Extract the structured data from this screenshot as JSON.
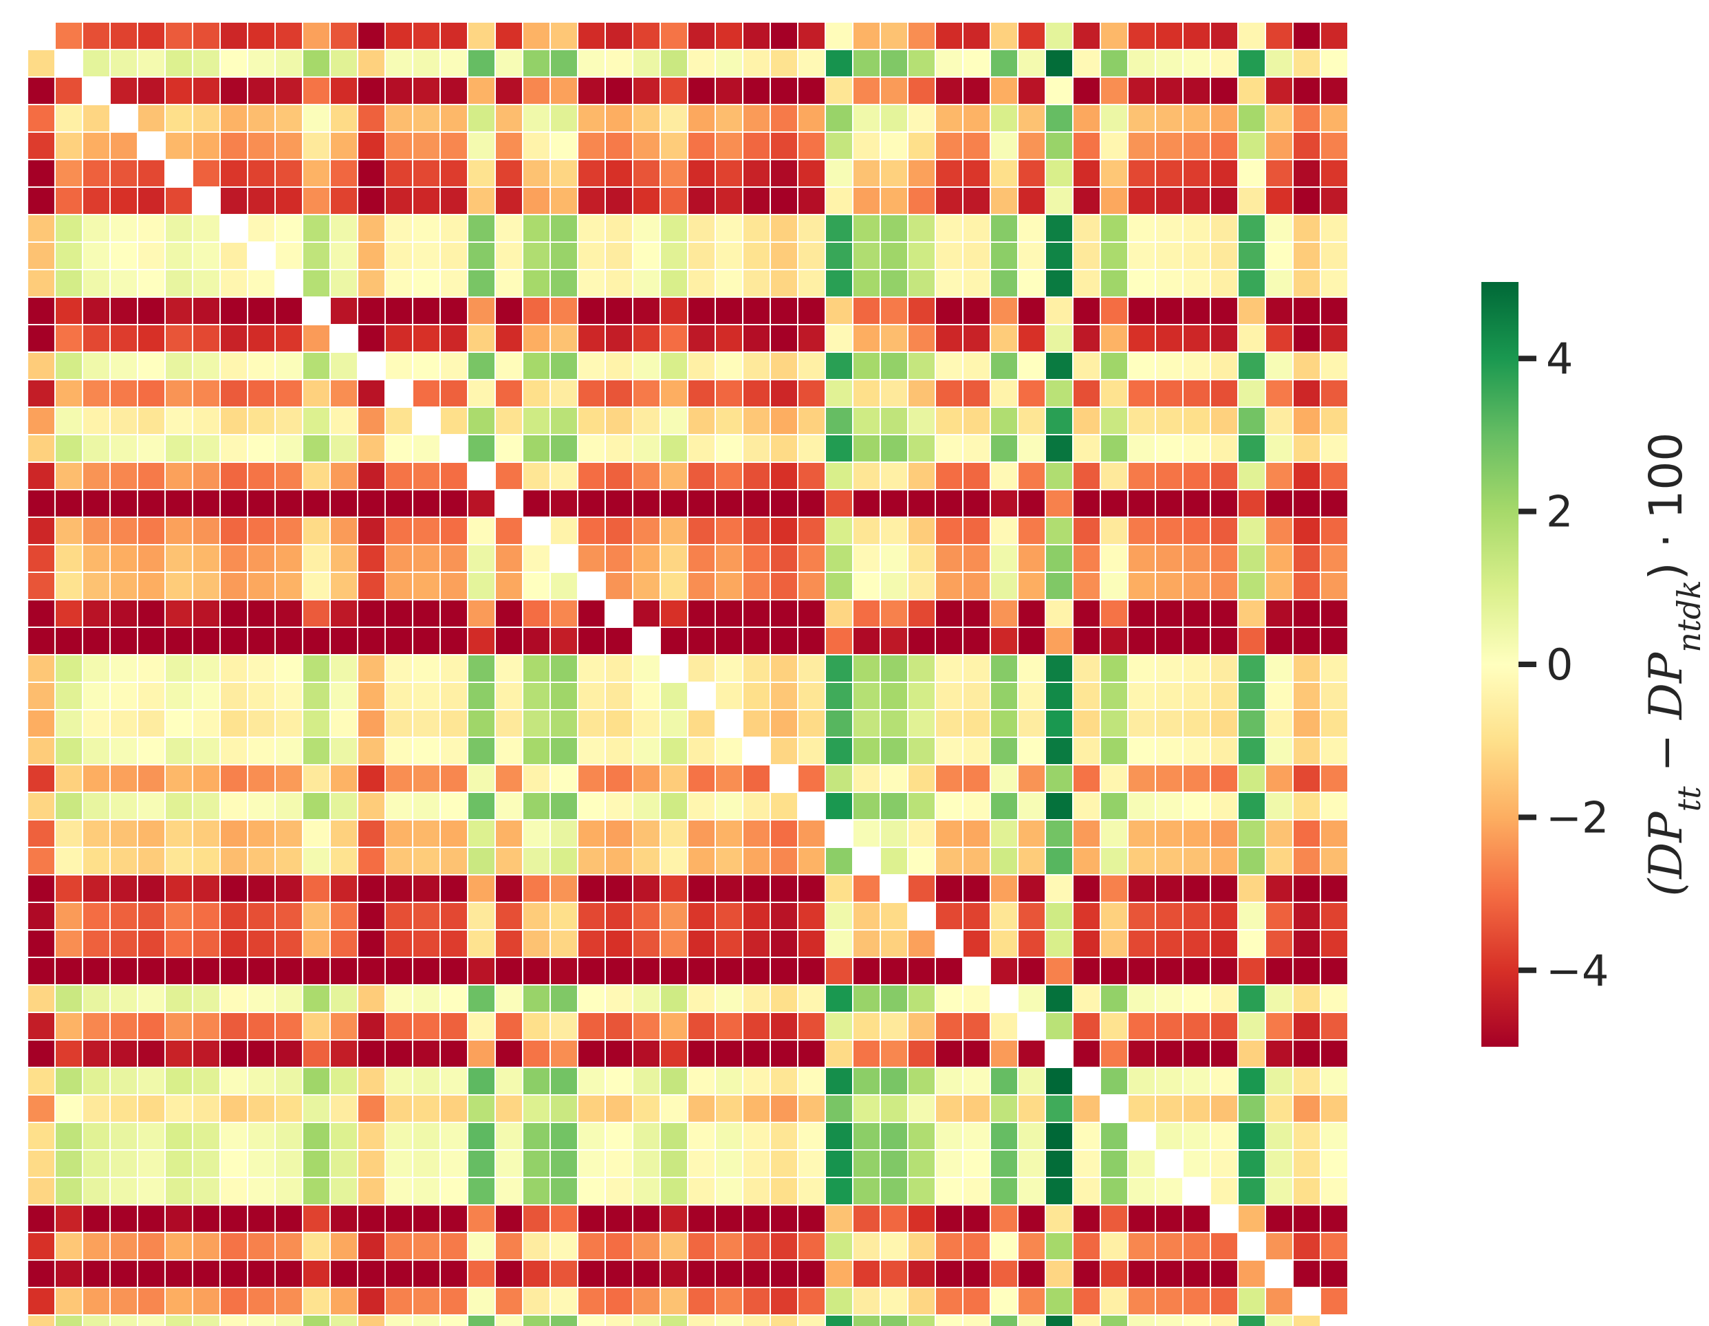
{
  "chart_data": {
    "type": "heatmap",
    "title": "",
    "xlabel": "",
    "ylabel": "",
    "colormap": "RdYlGn",
    "vmin": -5,
    "vmax": 5,
    "diagonal": "blank",
    "colorbar": {
      "label_parts": [
        "(DP",
        "tt",
        " − DP",
        "ntdk",
        ") · 100"
      ],
      "ticks": [
        {
          "value": -4,
          "label": "−4"
        },
        {
          "value": -2,
          "label": "−2"
        },
        {
          "value": 0,
          "label": "0"
        },
        {
          "value": 2,
          "label": "2"
        },
        {
          "value": 4,
          "label": "4"
        }
      ]
    },
    "row_offsets": [
      -3.1,
      1.1,
      -3.8,
      -0.8,
      -1.6,
      -2.8,
      -3.4,
      0.7,
      0.6,
      0.8,
      -4.3,
      -3.2,
      0.8,
      -2.2,
      0,
      0.9,
      -2.0,
      -6.5,
      -2.0,
      -1.4,
      -1.2,
      -4.2,
      -6.0,
      0.7,
      0.5,
      0.2,
      0.8,
      -1.6,
      1.0,
      -1.0,
      -0.6,
      -4.0,
      -2.6,
      -2.8,
      -6.5,
      1.0,
      -2.2,
      -4.1,
      1.2,
      -0.3,
      1.2,
      1.1,
      1.0,
      -4.6,
      -1.8,
      -5.0,
      -1.8,
      1.0
    ],
    "col_offsets": [
      -2.2,
      0.3,
      -0.4,
      -0.6,
      -0.8,
      -0.2,
      -0.4,
      -1.1,
      -0.9,
      -0.7,
      0.9,
      -0.3,
      -2.4,
      -0.9,
      -0.8,
      -1.0,
      1.9,
      -0.9,
      1.2,
      1.6,
      -1.0,
      -1.2,
      -0.6,
      0.2,
      -1.3,
      -0.9,
      -1.5,
      -2.0,
      -1.3,
      3.0,
      1.2,
      1.5,
      0.6,
      -1.0,
      -1.1,
      1.8,
      -0.8,
      3.8,
      -1.3,
      1.3,
      -0.8,
      -0.9,
      -1.0,
      -1.3,
      2.8,
      -0.6,
      -2.0,
      -1.1
    ]
  }
}
